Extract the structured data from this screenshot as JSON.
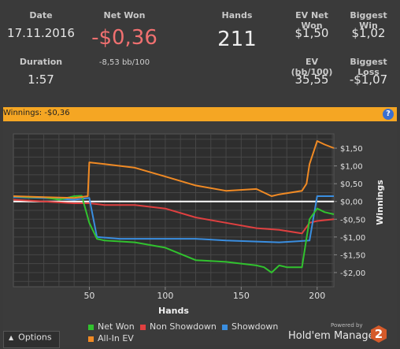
{
  "stats": {
    "date_label": "Date",
    "date": "17.11.2016",
    "net_won_label": "Net Won",
    "net_won": "-$0,36",
    "net_won_bb": "-8,53 bb/100",
    "hands_label": "Hands",
    "hands": "211",
    "ev_net_won_label": "EV Net Won",
    "ev_net_won": "$1,50",
    "biggest_win_label": "Biggest Win",
    "biggest_win": "$1,02",
    "duration_label": "Duration",
    "duration": "1:57",
    "ev_bb_label": "EV (bb/100)",
    "ev_bb": "35,55",
    "biggest_loss_label": "Biggest Loss",
    "biggest_loss": "-$1,07"
  },
  "header_bar": {
    "title": "Winnings: -$0,36",
    "help_icon": "question-icon"
  },
  "chart_data": {
    "type": "line",
    "xlabel": "Hands",
    "ylabel": "Winnings",
    "xlim": [
      0,
      211
    ],
    "ylim": [
      -2.4,
      1.9
    ],
    "xticks": [
      50,
      100,
      150,
      200
    ],
    "yticks": [
      1.5,
      1.0,
      0.5,
      0.0,
      -0.5,
      -1.0,
      -1.5,
      -2.0
    ],
    "ytick_labels": [
      "$1,50",
      "$1,00",
      "$0,50",
      "$0,00",
      "-$0,50",
      "-$1,00",
      "-$1,50",
      "-$2,00"
    ],
    "zero_line": true,
    "colors": {
      "net_won": "#31c22e",
      "non_showdown": "#e04040",
      "showdown": "#3a8ee0",
      "all_in_ev": "#f08a24"
    },
    "series": [
      {
        "name": "Net Won",
        "x": [
          0,
          10,
          20,
          30,
          40,
          45,
          50,
          55,
          60,
          80,
          100,
          120,
          140,
          160,
          165,
          170,
          175,
          180,
          190,
          195,
          200,
          205,
          211
        ],
        "values": [
          0.15,
          0.12,
          0.12,
          0.05,
          0.15,
          0.16,
          -0.6,
          -1.05,
          -1.1,
          -1.15,
          -1.3,
          -1.65,
          -1.7,
          -1.8,
          -1.85,
          -2.0,
          -1.8,
          -1.85,
          -1.85,
          -0.5,
          -0.2,
          -0.3,
          -0.36
        ]
      },
      {
        "name": "Non Showdown",
        "x": [
          0,
          20,
          40,
          50,
          60,
          80,
          100,
          120,
          140,
          160,
          175,
          190,
          195,
          200,
          211
        ],
        "values": [
          0.05,
          0.0,
          -0.05,
          -0.05,
          -0.1,
          -0.1,
          -0.2,
          -0.45,
          -0.6,
          -0.75,
          -0.8,
          -0.9,
          -0.6,
          -0.55,
          -0.5
        ]
      },
      {
        "name": "Showdown",
        "x": [
          0,
          20,
          40,
          50,
          55,
          70,
          120,
          140,
          175,
          195,
          200,
          211
        ],
        "values": [
          0.12,
          0.1,
          0.05,
          0.1,
          -1.0,
          -1.05,
          -1.05,
          -1.1,
          -1.15,
          -1.1,
          0.15,
          0.15
        ]
      },
      {
        "name": "All-In EV",
        "x": [
          0,
          20,
          40,
          49,
          50,
          60,
          80,
          100,
          120,
          140,
          160,
          170,
          175,
          190,
          193,
          195,
          200,
          205,
          211
        ],
        "values": [
          0.15,
          0.12,
          0.1,
          0.15,
          1.1,
          1.05,
          0.95,
          0.7,
          0.45,
          0.3,
          0.35,
          0.15,
          0.2,
          0.3,
          0.5,
          1.05,
          1.7,
          1.6,
          1.5
        ]
      }
    ]
  },
  "legend": {
    "items": [
      {
        "label": "Net Won",
        "color": "#31c22e"
      },
      {
        "label": "Non Showdown",
        "color": "#e04040"
      },
      {
        "label": "Showdown",
        "color": "#3a8ee0"
      },
      {
        "label": "All-In EV",
        "color": "#f08a24"
      }
    ]
  },
  "footer": {
    "options_label": "Options",
    "powered_by": "Powered by",
    "brand": "Hold'em Manager",
    "brand_badge": "2"
  }
}
